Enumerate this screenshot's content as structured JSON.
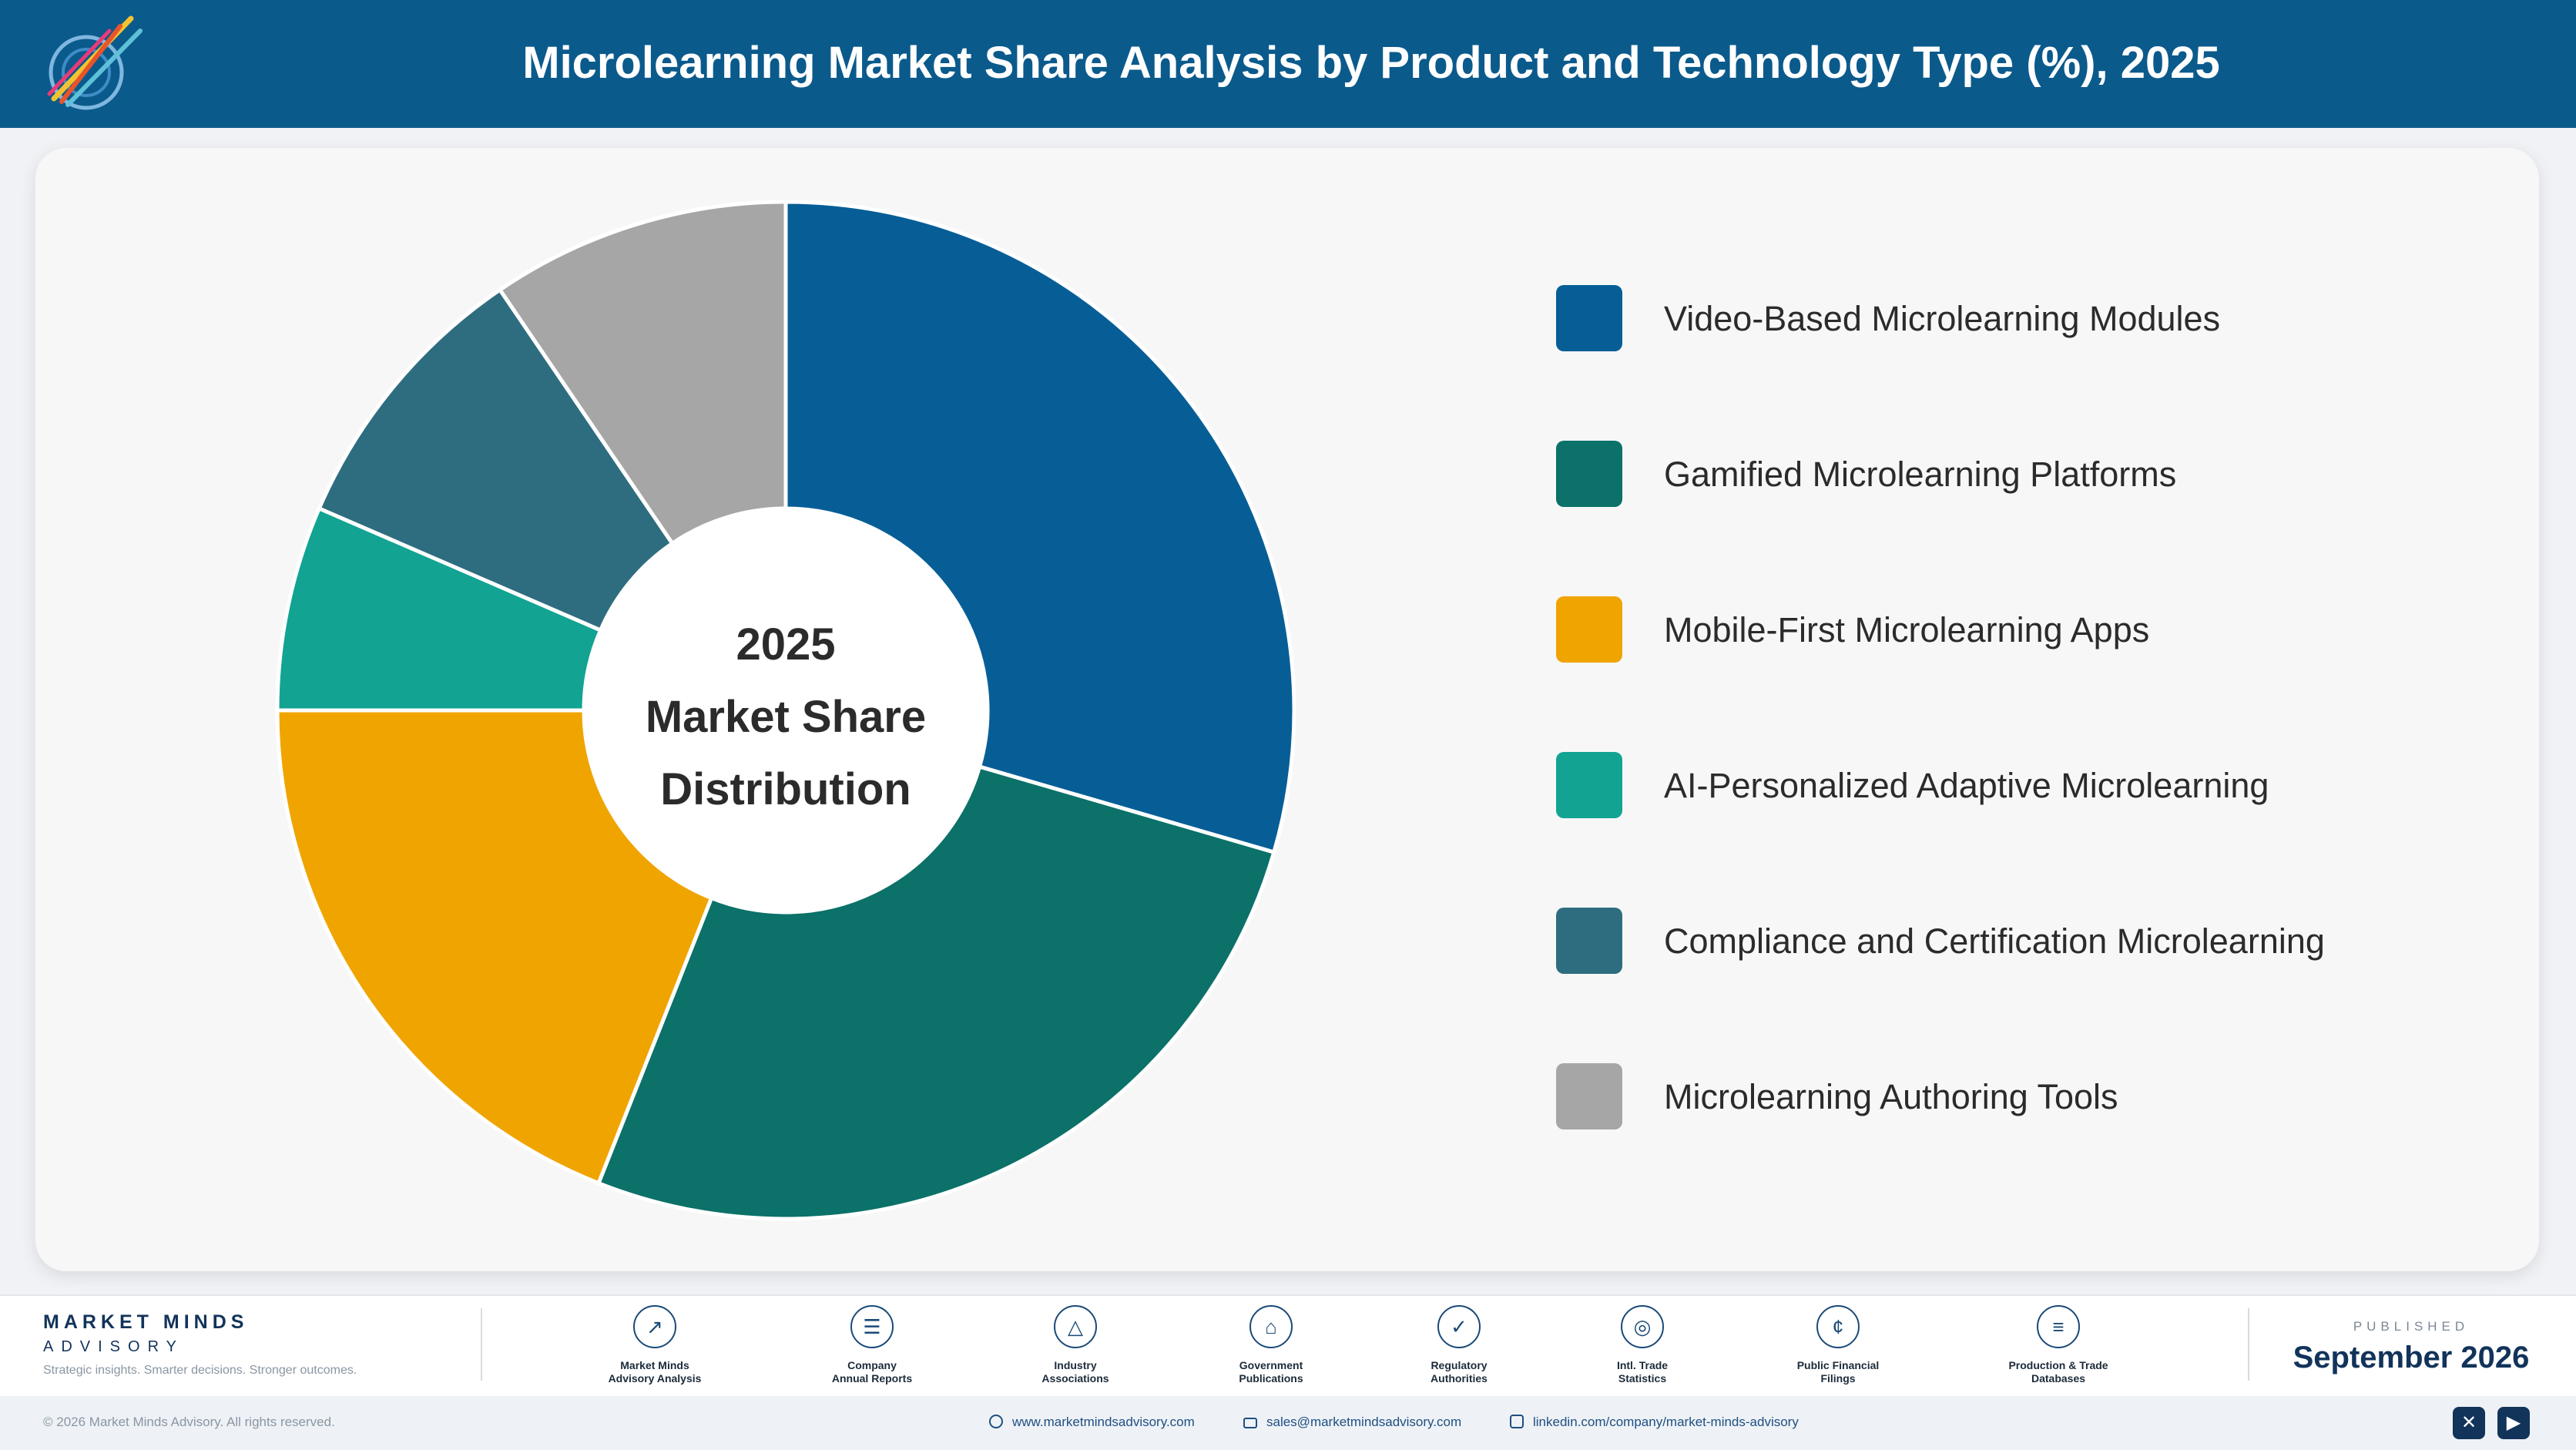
{
  "header": {
    "title": "Microlearning Market Share Analysis by Product and Technology Type (%), 2025"
  },
  "chart_data": {
    "type": "pie",
    "style": "donut",
    "title": "Microlearning Market Share Analysis by Product and Technology Type (%), 2025",
    "center_label": [
      "2025",
      "Market Share",
      "Distribution"
    ],
    "legend_position": "right",
    "categories": [
      "Video-Based Microlearning Modules",
      "Gamified Microlearning Platforms",
      "Mobile-First Microlearning Apps",
      "AI-Personalized Adaptive Microlearning",
      "Compliance and Certification Microlearning",
      "Microlearning Authoring Tools"
    ],
    "values": [
      29.5,
      26.5,
      19,
      6.5,
      9,
      9.5
    ],
    "colors": [
      "#075e96",
      "#0b7169",
      "#f0a400",
      "#12a393",
      "#2e6d80",
      "#a6a6a6"
    ]
  },
  "footer": {
    "brand_name": "MARKET MINDS",
    "brand_sub": "ADVISORY",
    "brand_tagline": "Strategic insights. Smarter decisions. Stronger outcomes.",
    "sources": [
      {
        "line1": "Market Minds",
        "line2": "Advisory Analysis",
        "icon": "chart-line-icon"
      },
      {
        "line1": "Company",
        "line2": "Annual Reports",
        "icon": "document-icon"
      },
      {
        "line1": "Industry",
        "line2": "Associations",
        "icon": "network-icon"
      },
      {
        "line1": "Government",
        "line2": "Publications",
        "icon": "government-building-icon"
      },
      {
        "line1": "Regulatory",
        "line2": "Authorities",
        "icon": "shield-check-icon"
      },
      {
        "line1": "Intl. Trade",
        "line2": "Statistics",
        "icon": "globe-icon"
      },
      {
        "line1": "Public Financial",
        "line2": "Filings",
        "icon": "coin-icon"
      },
      {
        "line1": "Production & Trade",
        "line2": "Databases",
        "icon": "database-icon"
      }
    ],
    "published_label": "PUBLISHED",
    "published_date": "September 2026",
    "copyright": "© 2026 Market Minds Advisory. All rights reserved.",
    "website": "www.marketmindsadvisory.com",
    "email": "sales@marketmindsadvisory.com",
    "linkedin": "linkedin.com/company/market-minds-advisory",
    "social_icons": [
      "x-icon",
      "youtube-icon"
    ]
  }
}
